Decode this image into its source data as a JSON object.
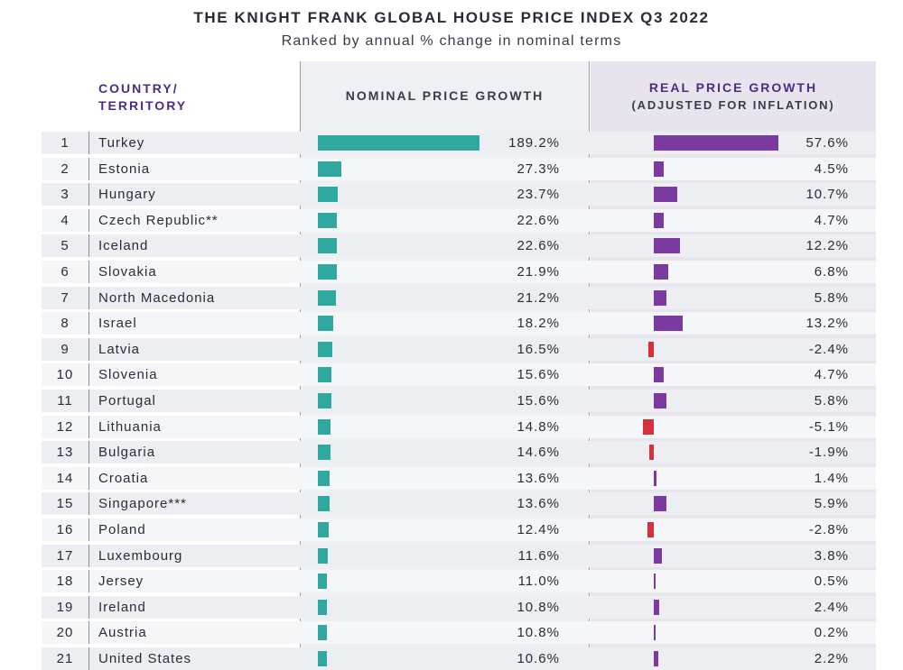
{
  "header": {
    "title": "THE KNIGHT FRANK GLOBAL HOUSE PRICE INDEX Q3 2022",
    "subtitle": "Ranked by annual % change in nominal terms",
    "col_country_l1": "COUNTRY/",
    "col_country_l2": "TERRITORY",
    "col_nominal": "NOMINAL PRICE GROWTH",
    "col_real_l1": "REAL PRICE GROWTH",
    "col_real_l2": "(ADJUSTED FOR INFLATION)"
  },
  "colors": {
    "nominal": "#2fa8a0",
    "real_positive": "#7a3aa0",
    "real_negative": "#d8303a",
    "header_accent": "#4c2d82"
  },
  "chart_data": {
    "type": "bar",
    "title": "THE KNIGHT FRANK GLOBAL HOUSE PRICE INDEX Q3 2022",
    "subtitle": "Ranked by annual % change in nominal terms",
    "categories": [
      "Turkey",
      "Estonia",
      "Hungary",
      "Czech Republic**",
      "Iceland",
      "Slovakia",
      "North Macedonia",
      "Israel",
      "Latvia",
      "Slovenia",
      "Portugal",
      "Lithuania",
      "Bulgaria",
      "Croatia",
      "Singapore***",
      "Poland",
      "Luxembourg",
      "Jersey",
      "Ireland",
      "Austria",
      "United States"
    ],
    "ranks": [
      "1",
      "2",
      "3",
      "4",
      "5",
      "6",
      "7",
      "8",
      "9",
      "10",
      "11",
      "12",
      "13",
      "14",
      "15",
      "16",
      "17",
      "18",
      "19",
      "20",
      "21"
    ],
    "series": [
      {
        "name": "NOMINAL PRICE GROWTH",
        "values": [
          189.2,
          27.3,
          23.7,
          22.6,
          22.6,
          21.9,
          21.2,
          18.2,
          16.5,
          15.6,
          15.6,
          14.8,
          14.6,
          13.6,
          13.6,
          12.4,
          11.6,
          11.0,
          10.8,
          10.8,
          10.6
        ],
        "labels": [
          "189.2%",
          "27.3%",
          "23.7%",
          "22.6%",
          "22.6%",
          "21.9%",
          "21.2%",
          "18.2%",
          "16.5%",
          "15.6%",
          "15.6%",
          "14.8%",
          "14.6%",
          "13.6%",
          "13.6%",
          "12.4%",
          "11.6%",
          "11.0%",
          "10.8%",
          "10.8%",
          "10.6%"
        ]
      },
      {
        "name": "REAL PRICE GROWTH",
        "values": [
          57.6,
          4.5,
          10.7,
          4.7,
          12.2,
          6.8,
          5.8,
          13.2,
          -2.4,
          4.7,
          5.8,
          -5.1,
          -1.9,
          1.4,
          5.9,
          -2.8,
          3.8,
          0.5,
          2.4,
          0.2,
          2.2
        ],
        "labels": [
          "57.6%",
          "4.5%",
          "10.7%",
          "4.7%",
          "12.2%",
          "6.8%",
          "5.8%",
          "13.2%",
          "-2.4%",
          "4.7%",
          "5.8%",
          "-5.1%",
          "-1.9%",
          "1.4%",
          "5.9%",
          "-2.8%",
          "3.8%",
          "0.5%",
          "2.4%",
          "0.2%",
          "2.2%"
        ]
      }
    ]
  }
}
